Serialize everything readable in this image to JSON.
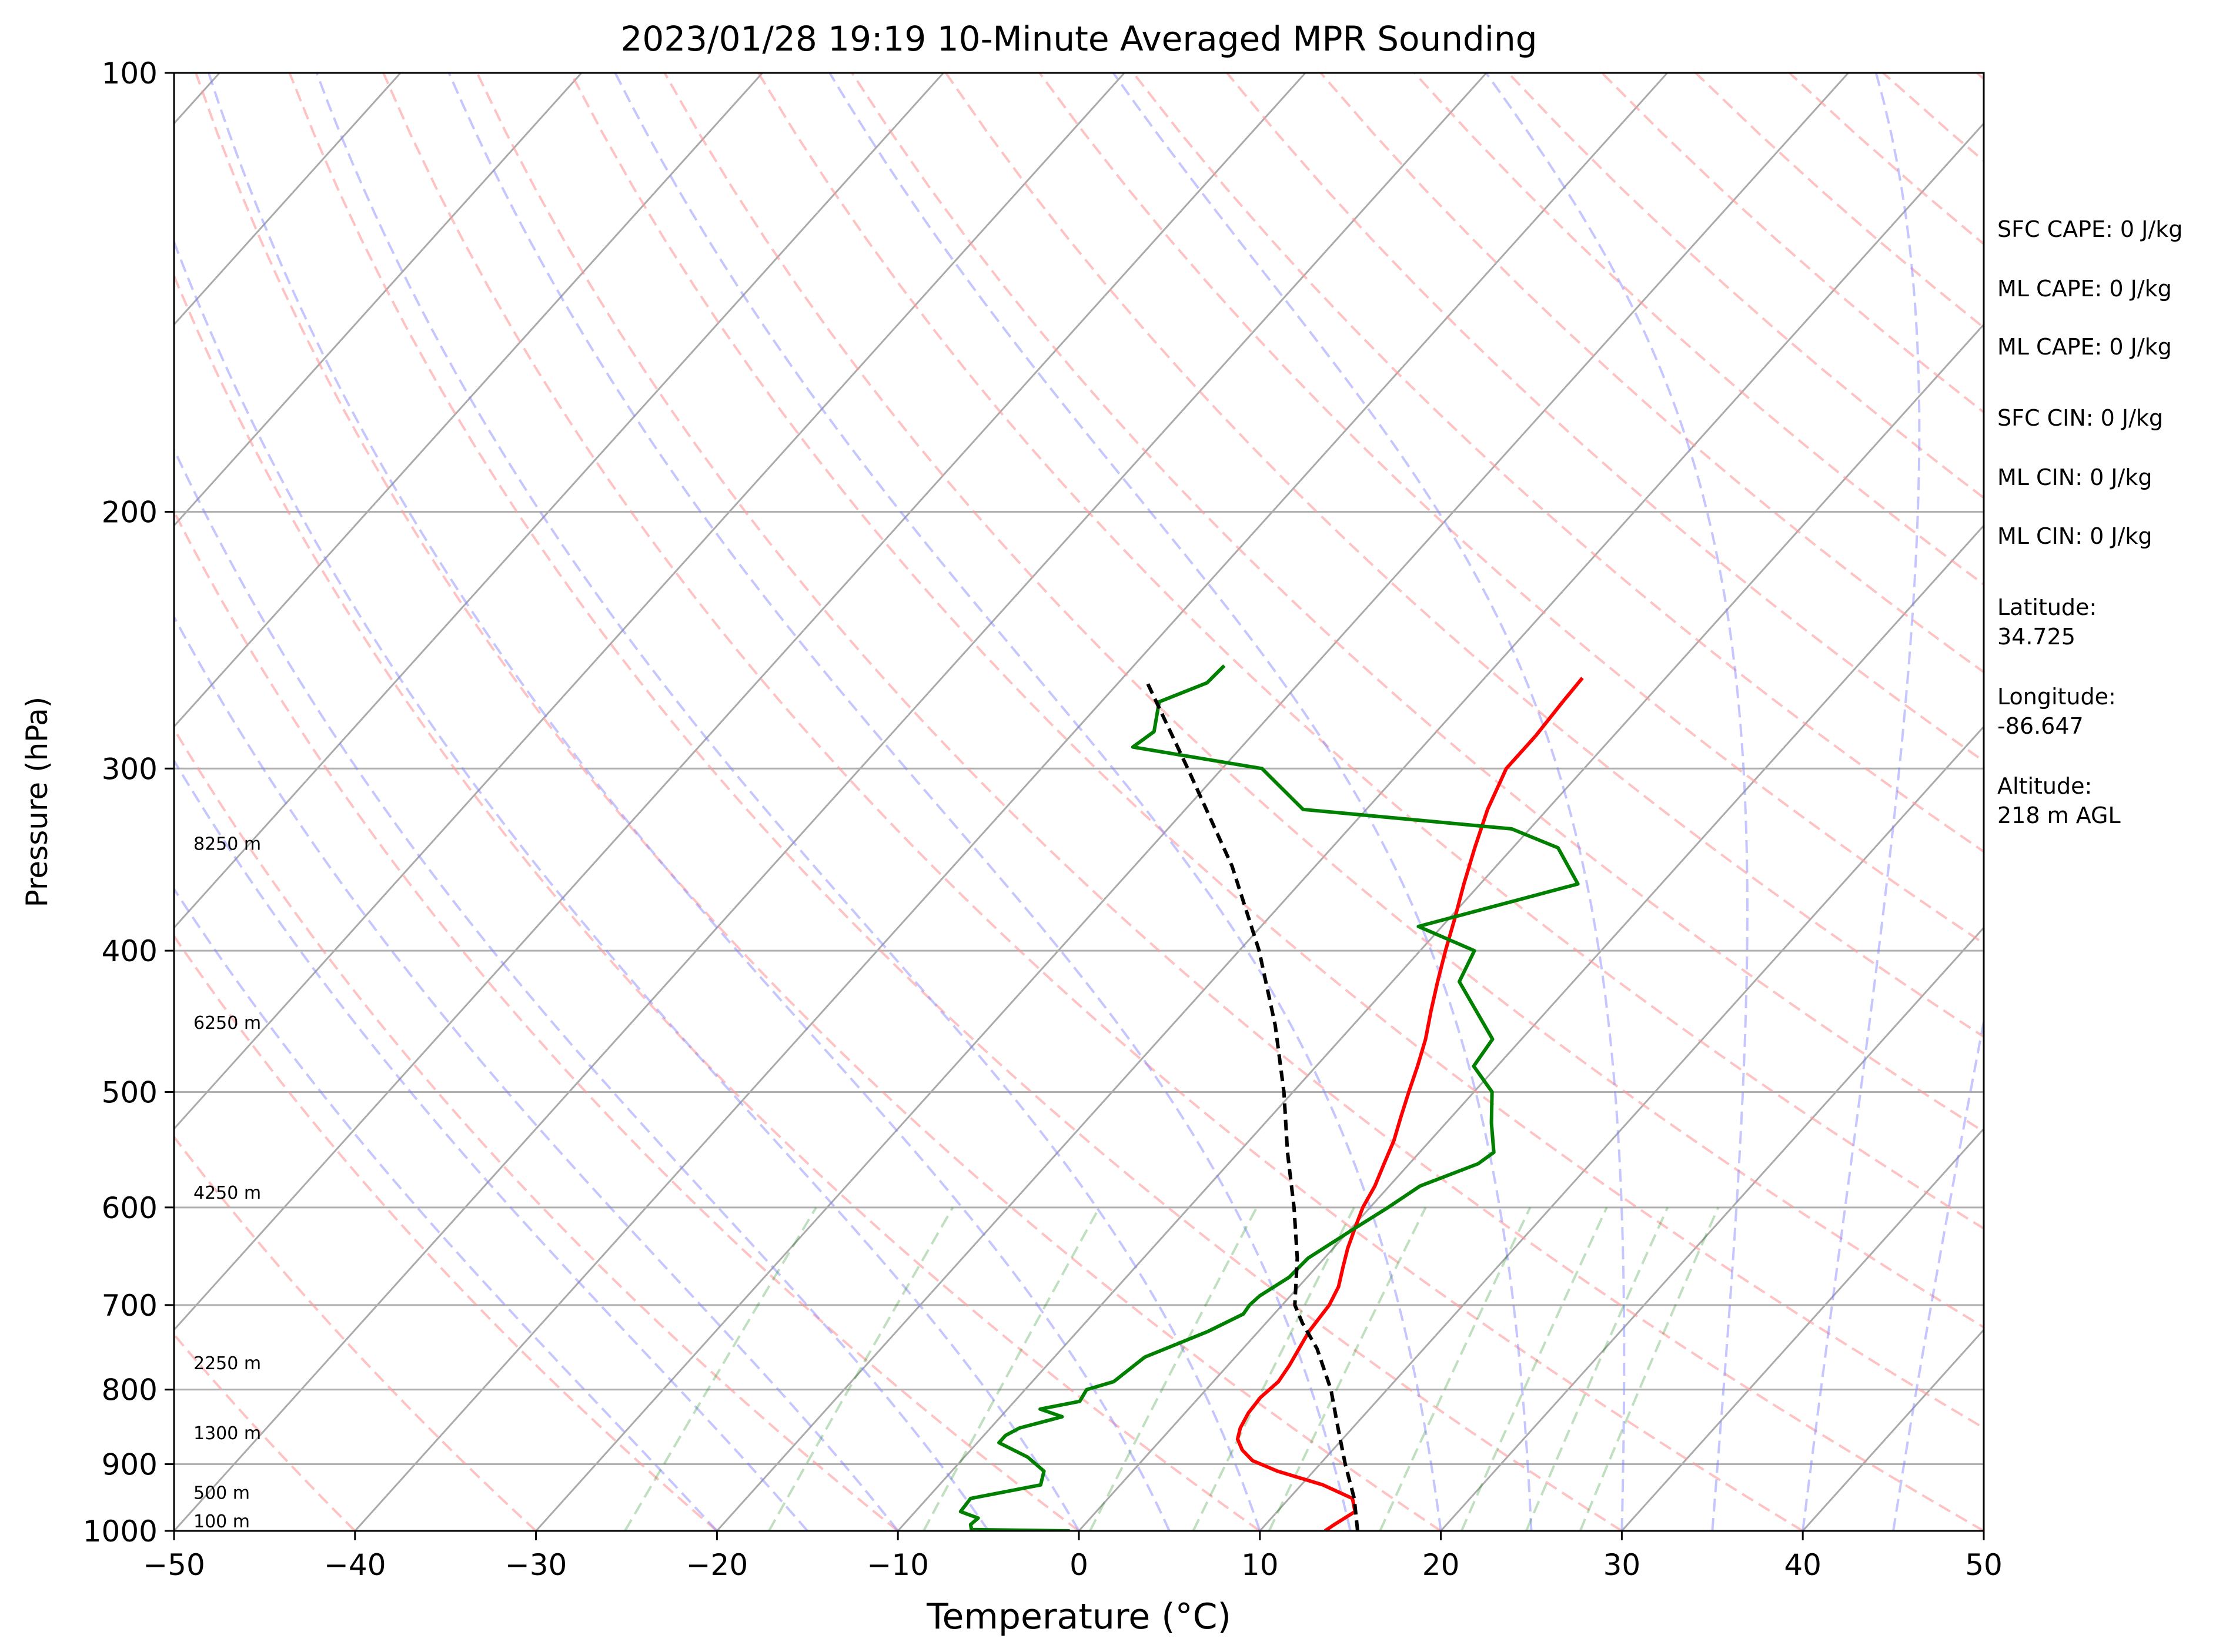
{
  "chart_data": {
    "type": "line",
    "subtype": "skew-t log-p sounding",
    "title": "2023/01/28 19:19 10-Minute Averaged MPR Sounding",
    "xlabel": "Temperature (°C)",
    "ylabel": "Pressure (hPa)",
    "xlim": [
      -50,
      50
    ],
    "ylim": [
      1000,
      100
    ],
    "y_scale": "log",
    "x_ticks": [
      "−50",
      "−40",
      "−30",
      "−20",
      "−10",
      "0",
      "10",
      "20",
      "30",
      "40",
      "50"
    ],
    "y_ticks": [
      "100",
      "200",
      "300",
      "400",
      "500",
      "600",
      "700",
      "800",
      "900",
      "1000"
    ],
    "grid": true,
    "series": [
      {
        "role": "temperature",
        "color": "#ff0000",
        "points": [
          [
            1000,
            13.6
          ],
          [
            990,
            13.8
          ],
          [
            970,
            14.3
          ],
          [
            950,
            13.5
          ],
          [
            930,
            11.2
          ],
          [
            910,
            8.0
          ],
          [
            895,
            6.1
          ],
          [
            880,
            5.0
          ],
          [
            865,
            4.2
          ],
          [
            850,
            3.8
          ],
          [
            830,
            3.5
          ],
          [
            810,
            3.4
          ],
          [
            790,
            3.6
          ],
          [
            770,
            3.4
          ],
          [
            750,
            3.1
          ],
          [
            730,
            2.8
          ],
          [
            700,
            2.6
          ],
          [
            680,
            2.2
          ],
          [
            660,
            1.5
          ],
          [
            640,
            0.8
          ],
          [
            620,
            0.2
          ],
          [
            600,
            -0.4
          ],
          [
            580,
            -0.8
          ],
          [
            560,
            -1.4
          ],
          [
            540,
            -2.0
          ],
          [
            520,
            -2.8
          ],
          [
            500,
            -3.6
          ],
          [
            480,
            -4.4
          ],
          [
            460,
            -5.3
          ],
          [
            440,
            -6.4
          ],
          [
            420,
            -7.5
          ],
          [
            400,
            -8.6
          ],
          [
            380,
            -9.7
          ],
          [
            360,
            -10.9
          ],
          [
            340,
            -12.1
          ],
          [
            320,
            -13.3
          ],
          [
            300,
            -14.3
          ],
          [
            285,
            -14.3
          ],
          [
            270,
            -14.5
          ],
          [
            260,
            -14.6
          ]
        ]
      },
      {
        "role": "dewpoint",
        "color": "#008000",
        "points": [
          [
            1000,
            -0.5
          ],
          [
            998,
            -6.0
          ],
          [
            990,
            -6.3
          ],
          [
            980,
            -6.2
          ],
          [
            970,
            -7.5
          ],
          [
            950,
            -7.6
          ],
          [
            930,
            -4.4
          ],
          [
            910,
            -4.9
          ],
          [
            890,
            -6.5
          ],
          [
            870,
            -8.8
          ],
          [
            860,
            -8.8
          ],
          [
            850,
            -8.4
          ],
          [
            835,
            -6.6
          ],
          [
            825,
            -8.2
          ],
          [
            815,
            -6.4
          ],
          [
            800,
            -6.6
          ],
          [
            790,
            -5.5
          ],
          [
            760,
            -5.0
          ],
          [
            730,
            -2.8
          ],
          [
            710,
            -1.7
          ],
          [
            700,
            -1.8
          ],
          [
            690,
            -1.7
          ],
          [
            670,
            -1.0
          ],
          [
            650,
            -0.9
          ],
          [
            620,
            0.2
          ],
          [
            600,
            1.0
          ],
          [
            580,
            1.7
          ],
          [
            560,
            3.8
          ],
          [
            550,
            4.1
          ],
          [
            525,
            2.5
          ],
          [
            500,
            1.0
          ],
          [
            480,
            -1.3
          ],
          [
            460,
            -1.6
          ],
          [
            420,
            -6.3
          ],
          [
            400,
            -7.0
          ],
          [
            385,
            -11.3
          ],
          [
            360,
            -4.6
          ],
          [
            340,
            -7.5
          ],
          [
            330,
            -11.0
          ],
          [
            320,
            -23.5
          ],
          [
            300,
            -27.8
          ],
          [
            290,
            -36.0
          ],
          [
            283,
            -35.6
          ],
          [
            270,
            -36.8
          ],
          [
            262,
            -35.1
          ],
          [
            255,
            -35.0
          ]
        ]
      },
      {
        "role": "parcel",
        "color": "#000000",
        "style": "dashed",
        "points": [
          [
            1000,
            15.4
          ],
          [
            950,
            13.6
          ],
          [
            900,
            11.4
          ],
          [
            850,
            9.2
          ],
          [
            800,
            6.9
          ],
          [
            750,
            4.1
          ],
          [
            720,
            2.0
          ],
          [
            700,
            0.7
          ],
          [
            650,
            -1.5
          ],
          [
            600,
            -4.2
          ],
          [
            550,
            -7.3
          ],
          [
            500,
            -10.5
          ],
          [
            450,
            -14.3
          ],
          [
            400,
            -18.9
          ],
          [
            350,
            -24.6
          ],
          [
            300,
            -31.9
          ],
          [
            262,
            -38.4
          ]
        ]
      }
    ],
    "height_labels": [
      {
        "p": 1000,
        "text": "100 m"
      },
      {
        "p": 956,
        "text": "500 m"
      },
      {
        "p": 870,
        "text": "1300 m"
      },
      {
        "p": 779,
        "text": "2250 m"
      },
      {
        "p": 595,
        "text": "4250 m"
      },
      {
        "p": 455,
        "text": "6250 m"
      },
      {
        "p": 343,
        "text": "8250 m"
      }
    ],
    "side_panel": [
      "SFC CAPE: 0 J/kg",
      "ML CAPE: 0 J/kg",
      "ML CAPE: 0 J/kg",
      "SFC CIN: 0 J/kg",
      "ML CIN: 0 J/kg",
      "ML CIN: 0 J/kg",
      "Latitude:\n34.725",
      "Longitude:\n-86.647",
      "Altitude:\n218 m AGL"
    ],
    "reference_lines": {
      "isotherms": {
        "color": "#aaaaaa",
        "style": "solid"
      },
      "dry_adiabats": {
        "color": "#ffb3b3",
        "style": "dashed"
      },
      "moist_adiabats": {
        "color": "#c0c0ff",
        "style": "dashed"
      },
      "mixing_ratio": {
        "color": "#b3d9b3",
        "style": "dashed"
      }
    }
  }
}
